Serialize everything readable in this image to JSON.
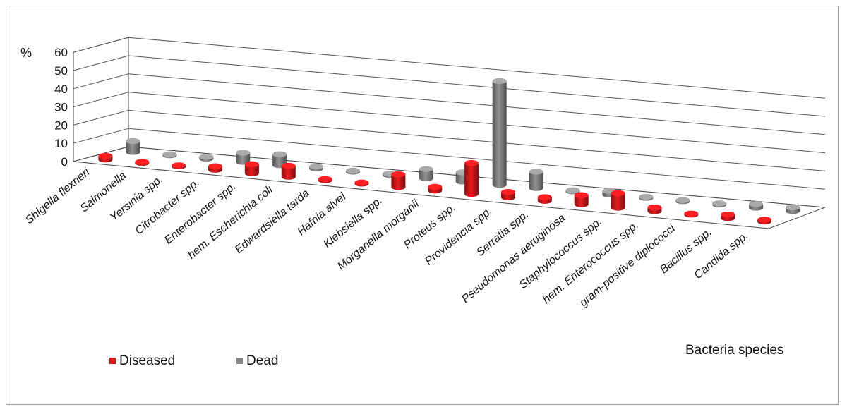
{
  "chart_data": {
    "type": "bar",
    "style": "3d-column",
    "ylabel": "%",
    "xlabel": "Bacteria species",
    "ylim": [
      0,
      60
    ],
    "yticks": [
      0,
      10,
      20,
      30,
      40,
      50,
      60
    ],
    "grid": true,
    "legend_position": "bottom-left",
    "categories": [
      "Shigella flexneri",
      "Salmonella",
      "Yersinia spp.",
      "Citrobacter spp.",
      "Enterobacter spp.",
      "hem. Escherichia coli",
      "Edwardsiella tarda",
      "Hafnia alvei",
      "Klebsiella spp.",
      "Morganella morganii",
      "Proteus spp.",
      "Providencia spp.",
      "Serratia spp.",
      "Pseudomonas aeruginosa",
      "Staphylococcus spp.",
      "hem. Enterococcus spp.",
      "gram-positive diplococci",
      "Bacillus spp.",
      "Candida spp."
    ],
    "series": [
      {
        "name": "Diseased",
        "color": "#d7191c",
        "values": [
          2,
          0.5,
          0.5,
          2,
          5,
          6,
          0.5,
          0.5,
          7,
          2,
          17,
          3,
          2,
          5,
          8,
          2,
          0.5,
          2,
          1
        ]
      },
      {
        "name": "Dead",
        "color": "#888888",
        "values": [
          6,
          0.5,
          1,
          5,
          6,
          1,
          0.5,
          0.5,
          5,
          5,
          57,
          9,
          0.5,
          2,
          0.5,
          0.5,
          0.5,
          2,
          2
        ]
      }
    ]
  }
}
